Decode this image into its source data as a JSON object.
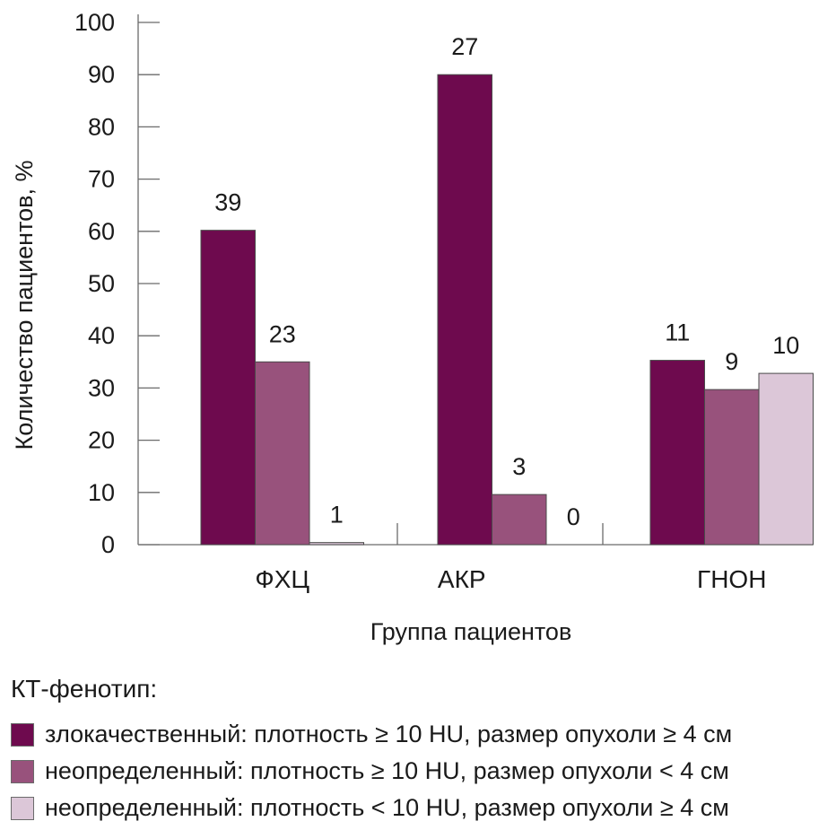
{
  "chart_data": {
    "type": "bar",
    "categories": [
      "ФХЦ",
      "АКР",
      "ГНОН"
    ],
    "series": [
      {
        "name": "злокачественный: плотность ≥ 10 HU, размер опухоли ≥ 4 см",
        "color": "#6e0a4e",
        "values": [
          60.2,
          90,
          35.3
        ],
        "labels": [
          "39",
          "27",
          "11"
        ]
      },
      {
        "name": "неопределенный: плотность ≥ 10 HU, размер опухоли < 4 см",
        "color": "#98527c",
        "values": [
          35,
          9.6,
          29.7
        ],
        "labels": [
          "23",
          "3",
          "9"
        ]
      },
      {
        "name": "неопределенный: плотность < 10 HU, размер опухоли ≥ 4 см",
        "color": "#dcc7d8",
        "values": [
          0.4,
          0,
          32.8
        ],
        "labels": [
          "1",
          "0",
          "10"
        ]
      }
    ],
    "ylim": [
      0,
      100
    ],
    "yticks": [
      0,
      10,
      20,
      30,
      40,
      50,
      60,
      70,
      80,
      90,
      100
    ],
    "xlabel": "Группа пациентов",
    "ylabel": "Количество пациентов, %",
    "grid": false
  },
  "legend": {
    "title": "КТ-фенотип:",
    "items": [
      {
        "label": "злокачественный: плотность ≥ 10 HU, размер опухоли ≥ 4 см",
        "color": "#6e0a4e"
      },
      {
        "label": "неопределенный: плотность ≥ 10 HU, размер опухоли < 4 см",
        "color": "#98527c"
      },
      {
        "label": "неопределенный: плотность < 10 HU, размер опухоли ≥ 4 см",
        "color": "#dcc7d8"
      }
    ]
  }
}
